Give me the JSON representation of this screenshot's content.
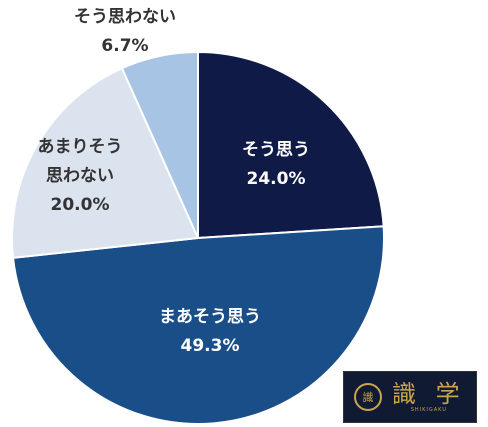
{
  "chart_data": {
    "type": "pie",
    "categories": [
      "そう思う",
      "まあそう思う",
      "あまりそう思わない",
      "そう思わない"
    ],
    "values": [
      24.0,
      49.3,
      20.0,
      6.7
    ],
    "value_labels": [
      "24.0%",
      "49.3%",
      "20.0%",
      "6.7%"
    ],
    "label_lines": [
      [
        "そう思う"
      ],
      [
        "まあそう思う"
      ],
      [
        "あまりそう",
        "思わない"
      ],
      [
        "そう思わない"
      ]
    ],
    "colors": [
      "#0f1a47",
      "#1a4e89",
      "#dbe3ef",
      "#a7c4e5"
    ],
    "start": "12 o'clock",
    "direction": "clockwise"
  },
  "logo": {
    "text": "識 学",
    "subtext": "SHIKIGAKU",
    "seal": "識"
  }
}
